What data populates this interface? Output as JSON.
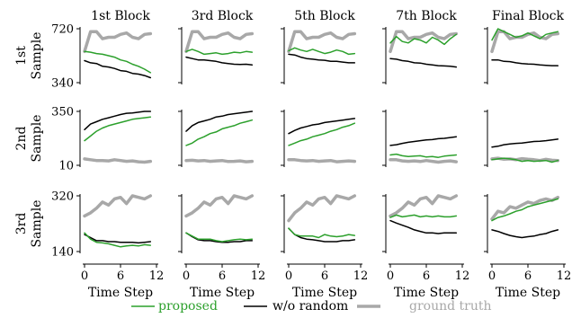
{
  "colors": {
    "proposed": "#2ca02c",
    "wo_random": "#000000",
    "ground_truth": "#a8a8a8"
  },
  "chart_data": {
    "type": "line",
    "columns": [
      "1st Block",
      "3rd Block",
      "5th Block",
      "7th Block",
      "Final Block"
    ],
    "rows": [
      {
        "label_line1": "1st",
        "label_line2": "Sample",
        "ylim": [
          340,
          720
        ],
        "yticks": [
          "720",
          "340"
        ]
      },
      {
        "label_line1": "2nd",
        "label_line2": "Sample",
        "ylim": [
          10,
          350
        ],
        "yticks": [
          "350",
          "10"
        ]
      },
      {
        "label_line1": "3rd",
        "label_line2": "Sample",
        "ylim": [
          140,
          320
        ],
        "yticks": [
          "320",
          "140"
        ]
      }
    ],
    "xlabel": "Time Step",
    "xlim": [
      0,
      12
    ],
    "xticks": [
      "0",
      "6",
      "12"
    ],
    "x": [
      0,
      1,
      2,
      3,
      4,
      5,
      6,
      7,
      8,
      9,
      10,
      11
    ],
    "legend": [
      {
        "key": "proposed",
        "label": "proposed"
      },
      {
        "key": "wo_random",
        "label": "w/o random"
      },
      {
        "key": "ground_truth",
        "label": "ground truth"
      }
    ],
    "panels": [
      [
        {
          "ground_truth": [
            560,
            700,
            700,
            650,
            660,
            660,
            680,
            690,
            660,
            650,
            680,
            685
          ],
          "proposed": [
            560,
            555,
            545,
            540,
            530,
            520,
            500,
            490,
            470,
            455,
            435,
            410
          ],
          "wo_random": [
            495,
            480,
            475,
            455,
            450,
            440,
            425,
            420,
            405,
            400,
            390,
            375
          ]
        },
        {
          "ground_truth": [
            560,
            700,
            700,
            650,
            660,
            660,
            680,
            690,
            660,
            650,
            680,
            685
          ],
          "proposed": [
            560,
            575,
            560,
            540,
            545,
            550,
            540,
            545,
            555,
            550,
            560,
            555
          ],
          "wo_random": [
            520,
            510,
            500,
            500,
            495,
            490,
            480,
            475,
            470,
            468,
            470,
            465
          ]
        },
        {
          "ground_truth": [
            560,
            700,
            700,
            650,
            660,
            660,
            680,
            690,
            660,
            650,
            680,
            685
          ],
          "proposed": [
            565,
            585,
            570,
            560,
            575,
            560,
            545,
            555,
            570,
            560,
            540,
            545
          ],
          "wo_random": [
            540,
            535,
            520,
            510,
            505,
            500,
            498,
            490,
            490,
            485,
            480,
            480
          ]
        },
        {
          "ground_truth": [
            560,
            700,
            700,
            650,
            660,
            660,
            680,
            690,
            660,
            650,
            680,
            685
          ],
          "proposed": [
            620,
            665,
            630,
            620,
            650,
            640,
            620,
            660,
            640,
            610,
            650,
            680
          ],
          "wo_random": [
            510,
            505,
            495,
            490,
            480,
            478,
            470,
            465,
            460,
            458,
            455,
            450
          ]
        },
        {
          "ground_truth": [
            560,
            700,
            700,
            650,
            660,
            660,
            680,
            690,
            660,
            650,
            680,
            685
          ],
          "proposed": [
            640,
            720,
            700,
            680,
            660,
            670,
            690,
            670,
            650,
            680,
            690,
            700
          ],
          "wo_random": [
            500,
            500,
            490,
            488,
            480,
            475,
            472,
            470,
            465,
            462,
            460,
            460
          ]
        }
      ],
      [
        {
          "ground_truth": [
            50,
            45,
            40,
            40,
            38,
            45,
            40,
            35,
            38,
            32,
            30,
            35
          ],
          "proposed": [
            165,
            195,
            225,
            245,
            260,
            270,
            280,
            290,
            300,
            305,
            310,
            315
          ],
          "wo_random": [
            235,
            270,
            285,
            300,
            310,
            320,
            330,
            338,
            340,
            345,
            350,
            350
          ]
        },
        {
          "ground_truth": [
            40,
            42,
            38,
            40,
            35,
            38,
            40,
            34,
            35,
            38,
            32,
            35
          ],
          "proposed": [
            135,
            150,
            175,
            190,
            210,
            220,
            240,
            250,
            260,
            275,
            285,
            295
          ],
          "wo_random": [
            225,
            260,
            280,
            290,
            300,
            315,
            320,
            330,
            335,
            340,
            345,
            350
          ]
        },
        {
          "ground_truth": [
            45,
            45,
            40,
            38,
            40,
            35,
            38,
            40,
            32,
            35,
            38,
            35
          ],
          "proposed": [
            135,
            150,
            165,
            175,
            190,
            200,
            210,
            225,
            235,
            250,
            260,
            275
          ],
          "wo_random": [
            210,
            230,
            245,
            255,
            265,
            270,
            280,
            285,
            290,
            295,
            300,
            305
          ]
        },
        {
          "ground_truth": [
            45,
            45,
            38,
            35,
            38,
            34,
            40,
            35,
            30,
            35,
            38,
            32
          ],
          "proposed": [
            75,
            80,
            70,
            65,
            68,
            70,
            62,
            65,
            60,
            68,
            72,
            75
          ],
          "wo_random": [
            135,
            140,
            148,
            155,
            160,
            165,
            170,
            172,
            178,
            180,
            185,
            190
          ]
        },
        {
          "ground_truth": [
            50,
            55,
            48,
            50,
            45,
            52,
            48,
            45,
            40,
            48,
            42,
            40
          ],
          "proposed": [
            45,
            50,
            55,
            50,
            45,
            35,
            40,
            35,
            38,
            40,
            30,
            40
          ],
          "wo_random": [
            125,
            130,
            140,
            145,
            148,
            150,
            155,
            160,
            162,
            165,
            170,
            175
          ]
        }
      ],
      [
        {
          "ground_truth": [
            255,
            265,
            280,
            300,
            290,
            310,
            315,
            295,
            320,
            315,
            310,
            320
          ],
          "proposed": [
            200,
            180,
            170,
            168,
            165,
            160,
            155,
            158,
            160,
            158,
            162,
            160
          ],
          "wo_random": [
            195,
            185,
            175,
            175,
            172,
            172,
            170,
            170,
            170,
            168,
            170,
            172
          ]
        },
        {
          "ground_truth": [
            255,
            265,
            280,
            300,
            290,
            310,
            315,
            295,
            320,
            315,
            310,
            320
          ],
          "proposed": [
            200,
            190,
            180,
            180,
            180,
            175,
            172,
            175,
            178,
            180,
            178,
            180
          ],
          "wo_random": [
            200,
            188,
            178,
            175,
            175,
            172,
            170,
            170,
            172,
            172,
            175,
            175
          ]
        },
        {
          "ground_truth": [
            240,
            265,
            280,
            300,
            290,
            310,
            315,
            295,
            320,
            315,
            310,
            320
          ],
          "proposed": [
            215,
            195,
            190,
            190,
            190,
            185,
            195,
            190,
            188,
            190,
            195,
            192
          ],
          "wo_random": [
            215,
            195,
            185,
            180,
            178,
            175,
            172,
            172,
            172,
            175,
            175,
            178
          ]
        },
        {
          "ground_truth": [
            255,
            265,
            280,
            300,
            290,
            310,
            315,
            295,
            320,
            315,
            310,
            320
          ],
          "proposed": [
            250,
            258,
            252,
            255,
            258,
            252,
            255,
            252,
            255,
            252,
            252,
            255
          ],
          "wo_random": [
            240,
            232,
            225,
            218,
            210,
            205,
            200,
            200,
            198,
            200,
            200,
            200
          ]
        },
        {
          "ground_truth": [
            245,
            270,
            265,
            285,
            280,
            290,
            300,
            295,
            305,
            310,
            305,
            315
          ],
          "proposed": [
            240,
            250,
            255,
            262,
            270,
            275,
            285,
            290,
            295,
            300,
            305,
            310
          ],
          "wo_random": [
            210,
            205,
            198,
            192,
            188,
            185,
            188,
            190,
            195,
            198,
            205,
            210
          ]
        }
      ]
    ]
  }
}
